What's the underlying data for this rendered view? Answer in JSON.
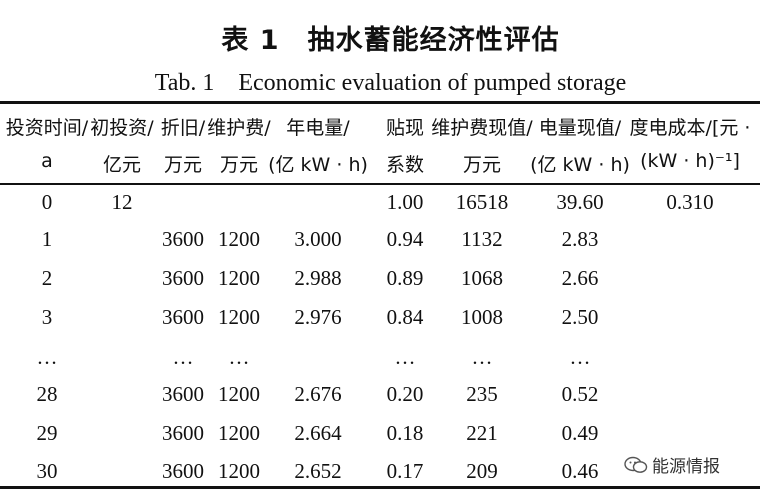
{
  "title_cn": "表 1　抽水蓄能经济性评估",
  "title_en": "Tab. 1　Economic evaluation of pumped storage",
  "headers": [
    {
      "line1": "投资时间/",
      "line2": "a"
    },
    {
      "line1": "初投资/",
      "line2": "亿元"
    },
    {
      "line1": "折旧/",
      "line2": "万元"
    },
    {
      "line1": "维护费/",
      "line2": "万元"
    },
    {
      "line1": "年电量/",
      "line2": "(亿 kW · h)"
    },
    {
      "line1": "贴现",
      "line2": "系数"
    },
    {
      "line1": "维护费现值/",
      "line2": "万元"
    },
    {
      "line1": "电量现值/",
      "line2": "(亿 kW · h)"
    },
    {
      "line1": "度电成本/[元 ·",
      "line2": "(kW · h)⁻¹]"
    }
  ],
  "rows": [
    [
      "0",
      "12",
      "",
      "",
      "",
      "1.00",
      "16518",
      "39.60",
      "0.310"
    ],
    [
      "1",
      "",
      "3600",
      "1200",
      "3.000",
      "0.94",
      "1132",
      "2.83",
      ""
    ],
    [
      "2",
      "",
      "3600",
      "1200",
      "2.988",
      "0.89",
      "1068",
      "2.66",
      ""
    ],
    [
      "3",
      "",
      "3600",
      "1200",
      "2.976",
      "0.84",
      "1008",
      "2.50",
      ""
    ],
    [
      "…",
      "",
      "…",
      "…",
      "",
      "…",
      "…",
      "…",
      ""
    ],
    [
      "28",
      "",
      "3600",
      "1200",
      "2.676",
      "0.20",
      "235",
      "0.52",
      ""
    ],
    [
      "29",
      "",
      "3600",
      "1200",
      "2.664",
      "0.18",
      "221",
      "0.49",
      ""
    ],
    [
      "30",
      "",
      "3600",
      "1200",
      "2.652",
      "0.17",
      "209",
      "0.46",
      ""
    ]
  ],
  "watermark": {
    "icon": "wechat-icon",
    "text": "能源情报"
  }
}
